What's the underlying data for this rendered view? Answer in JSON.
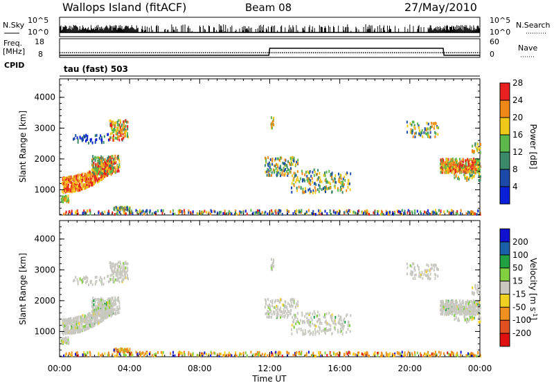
{
  "header": {
    "station": "Wallops Island (fitACF)",
    "beam": "Beam 08",
    "date": "27/May/2010"
  },
  "side_labels": {
    "nsky": "N.Sky",
    "freq_line1": "Freq.",
    "freq_line2": "[MHz]",
    "cpid": "CPID",
    "nsearch": "N.Search",
    "nave": "Nave"
  },
  "cpid_text": "tau (fast) 503",
  "chart_data": [
    {
      "type": "bar",
      "name": "nsky-nsearch",
      "left_ticks": [
        "10^5",
        "10^0"
      ],
      "right_ticks": [
        "10^5",
        "10^0"
      ],
      "description_series": [
        "N.Sky",
        "N.Search"
      ]
    },
    {
      "type": "line",
      "name": "freq-nave",
      "left_ticks": [
        "18",
        "8"
      ],
      "right_ticks": [
        "60",
        "0"
      ],
      "freq_mhz": [
        {
          "t": 0.0,
          "v": 10.5
        },
        {
          "t": 24.0,
          "v": 10.5
        }
      ],
      "nave": [
        {
          "t": 0.0,
          "v": 0
        },
        {
          "t": 11.95,
          "v": 0
        },
        {
          "t": 12.0,
          "v": 28
        },
        {
          "t": 21.9,
          "v": 28
        },
        {
          "t": 21.95,
          "v": 0
        },
        {
          "t": 24.0,
          "v": 0
        }
      ]
    },
    {
      "type": "heatmap",
      "name": "power",
      "ylabel": "Slant Range [km]",
      "yticks": [
        1000,
        2000,
        3000,
        4000
      ],
      "ylim": [
        180,
        4600
      ],
      "xlim_hours": [
        0,
        24
      ],
      "colorbar_label": "Power [dB]",
      "colorbar_ticks": [
        4,
        8,
        12,
        16,
        20,
        24,
        28
      ],
      "colors": [
        "#0a20d8",
        "#1c4aa8",
        "#3a8a6a",
        "#5cb84a",
        "#f0c818",
        "#f08818",
        "#e82020"
      ]
    },
    {
      "type": "heatmap",
      "name": "velocity",
      "ylabel": "Slant Range [km]",
      "yticks": [
        1000,
        2000,
        3000,
        4000
      ],
      "ylim": [
        180,
        4600
      ],
      "xlim_hours": [
        0,
        24
      ],
      "xticks": [
        "00:00",
        "04:00",
        "08:00",
        "12:00",
        "16:00",
        "20:00",
        "00:00"
      ],
      "xlabel": "Time UT",
      "colorbar_label": "Velocity [m s^-1]",
      "colorbar_ticks": [
        200,
        100,
        50,
        15,
        -15,
        -50,
        -100,
        -200
      ],
      "colors": [
        "#1010d0",
        "#1a60a8",
        "#20a040",
        "#80d040",
        "#c8c8c0",
        "#f0d020",
        "#f09020",
        "#e05020",
        "#e01010"
      ]
    }
  ]
}
